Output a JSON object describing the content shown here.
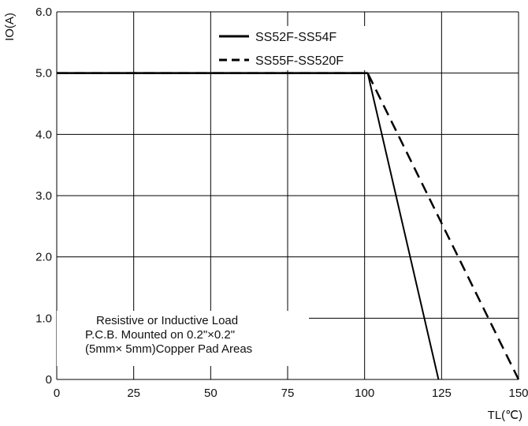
{
  "chart_data": {
    "type": "line",
    "title": "",
    "xlabel": "TL(℃)",
    "ylabel": "IO(A)",
    "xlim": [
      0,
      150
    ],
    "ylim": [
      0,
      6
    ],
    "x_ticks": [
      "0",
      "25",
      "50",
      "75",
      "100",
      "125",
      "150"
    ],
    "y_ticks": [
      "0",
      "1.0",
      "2.0",
      "3.0",
      "4.0",
      "5.0",
      "6.0"
    ],
    "grid": true,
    "legend_position": "top-right",
    "series": [
      {
        "name": "SS52F-SS54F",
        "style": "solid",
        "x": [
          0,
          101,
          124
        ],
        "y": [
          5.0,
          5.0,
          0
        ]
      },
      {
        "name": "SS55F-SS520F",
        "style": "dashed",
        "x": [
          0,
          101,
          150
        ],
        "y": [
          5.0,
          5.0,
          0
        ]
      }
    ],
    "annotation": [
      "Resistive or Inductive Load",
      "P.C.B. Mounted on 0.2\"×0.2\"",
      "(5mm× 5mm)Copper Pad Areas"
    ],
    "colors": {
      "line": "#000000",
      "grid": "#000000"
    }
  }
}
